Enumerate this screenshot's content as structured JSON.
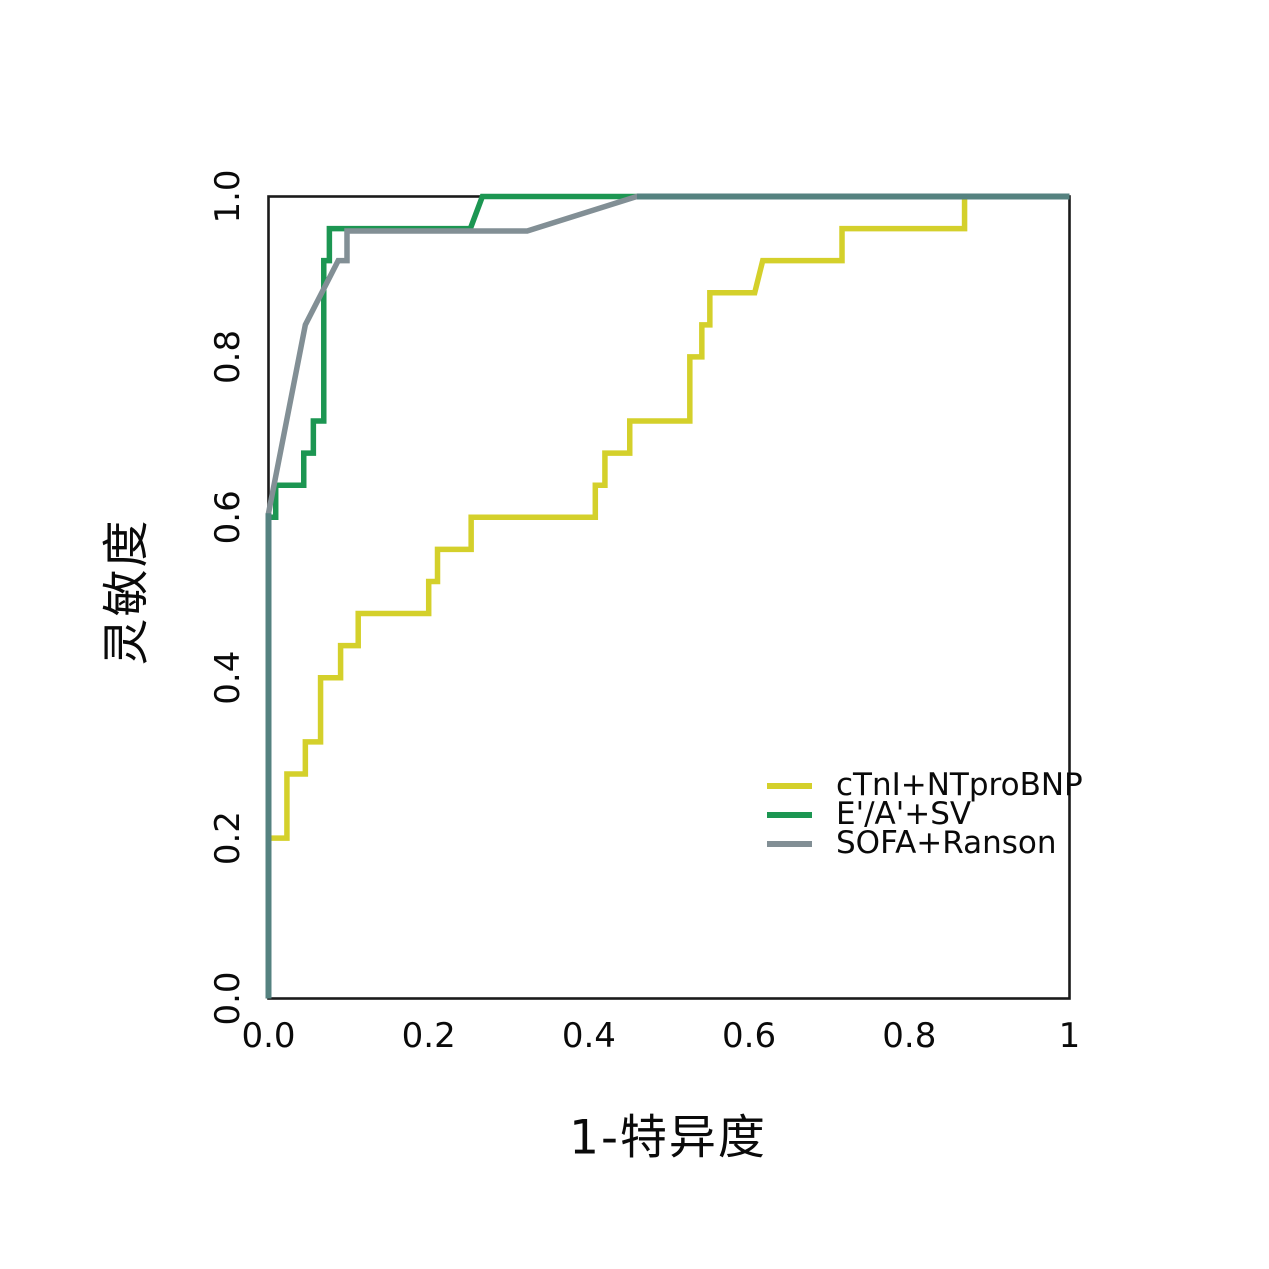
{
  "chart_data": {
    "type": "line",
    "subtype": "roc-step-curves",
    "title": "",
    "xlabel": "1-特异度",
    "ylabel": "灵敏度",
    "xlim": [
      0,
      1
    ],
    "ylim": [
      0,
      1
    ],
    "grid": false,
    "legend_position": "inside-right-middle",
    "x_ticks": [
      {
        "v": 0.0,
        "label": "0.0"
      },
      {
        "v": 0.2,
        "label": "0.2"
      },
      {
        "v": 0.4,
        "label": "0.4"
      },
      {
        "v": 0.6,
        "label": "0.6"
      },
      {
        "v": 0.8,
        "label": "0.8"
      },
      {
        "v": 1.0,
        "label": "1"
      }
    ],
    "y_ticks": [
      {
        "v": 0.0,
        "label": "0.0"
      },
      {
        "v": 0.2,
        "label": "0.2"
      },
      {
        "v": 0.4,
        "label": "0.4"
      },
      {
        "v": 0.6,
        "label": "0.6"
      },
      {
        "v": 0.8,
        "label": "0.8"
      },
      {
        "v": 1.0,
        "label": "1.0"
      }
    ],
    "series": [
      {
        "name": "cTnI+NTproBNP",
        "color": "#d4d02b",
        "points": [
          [
            0,
            0
          ],
          [
            0,
            0.2
          ],
          [
            0.023,
            0.2
          ],
          [
            0.023,
            0.28
          ],
          [
            0.046,
            0.28
          ],
          [
            0.046,
            0.32
          ],
          [
            0.065,
            0.32
          ],
          [
            0.065,
            0.4
          ],
          [
            0.09,
            0.4
          ],
          [
            0.09,
            0.44
          ],
          [
            0.112,
            0.44
          ],
          [
            0.112,
            0.48
          ],
          [
            0.2,
            0.48
          ],
          [
            0.2,
            0.52
          ],
          [
            0.211,
            0.52
          ],
          [
            0.211,
            0.56
          ],
          [
            0.253,
            0.56
          ],
          [
            0.253,
            0.6
          ],
          [
            0.408,
            0.6
          ],
          [
            0.408,
            0.64
          ],
          [
            0.42,
            0.64
          ],
          [
            0.42,
            0.68
          ],
          [
            0.451,
            0.68
          ],
          [
            0.451,
            0.72
          ],
          [
            0.526,
            0.72
          ],
          [
            0.526,
            0.8
          ],
          [
            0.541,
            0.8
          ],
          [
            0.541,
            0.84
          ],
          [
            0.551,
            0.84
          ],
          [
            0.551,
            0.88
          ],
          [
            0.607,
            0.88
          ],
          [
            0.617,
            0.92
          ],
          [
            0.716,
            0.92
          ],
          [
            0.716,
            0.96
          ],
          [
            0.869,
            0.96
          ],
          [
            0.869,
            1.0
          ],
          [
            1,
            1
          ]
        ]
      },
      {
        "name": "E'/A'+SV",
        "color": "#1c9652",
        "points": [
          [
            0,
            0
          ],
          [
            0,
            0.6
          ],
          [
            0.009,
            0.6
          ],
          [
            0.009,
            0.64
          ],
          [
            0.044,
            0.64
          ],
          [
            0.044,
            0.68
          ],
          [
            0.056,
            0.68
          ],
          [
            0.056,
            0.72
          ],
          [
            0.069,
            0.72
          ],
          [
            0.069,
            0.92
          ],
          [
            0.076,
            0.92
          ],
          [
            0.076,
            0.96
          ],
          [
            0.252,
            0.96
          ],
          [
            0.267,
            1.0
          ],
          [
            1,
            1
          ]
        ]
      },
      {
        "name": "SOFA+Ranson",
        "color": "#828f95",
        "points": [
          [
            0,
            0
          ],
          [
            0,
            0.605
          ],
          [
            0.046,
            0.84
          ],
          [
            0.087,
            0.92
          ],
          [
            0.098,
            0.92
          ],
          [
            0.098,
            0.957
          ],
          [
            0.323,
            0.957
          ],
          [
            0.46,
            1.0
          ],
          [
            1,
            1
          ]
        ]
      }
    ],
    "overlap_segments": {
      "color": "#558280",
      "segments": [
        [
          [
            0,
            0
          ],
          [
            0,
            0.605
          ]
        ],
        [
          [
            0.46,
            1.0
          ],
          [
            1,
            1.0
          ]
        ]
      ]
    }
  }
}
